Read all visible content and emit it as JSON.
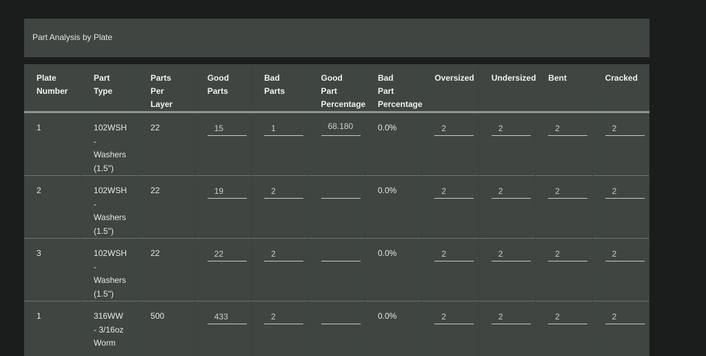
{
  "title": "Part Analysis by Plate",
  "columns": [
    "Plate Number",
    "Part Type",
    "Parts Per Layer",
    "Good Parts",
    "Bad Parts",
    "Good Part Percentage",
    "Bad Part Percentage",
    "Oversized",
    "Undersized",
    "Bent",
    "Cracked"
  ],
  "rows": [
    {
      "plate": "1",
      "part_type": "102WSH - Washers (1.5\")",
      "per_layer": "22",
      "good": "15",
      "bad": "1",
      "good_pct": "68.180",
      "bad_pct": "0.0%",
      "oversized": "2",
      "undersized": "2",
      "bent": "2",
      "cracked": "2"
    },
    {
      "plate": "2",
      "part_type": "102WSH - Washers (1.5\")",
      "per_layer": "22",
      "good": "19",
      "bad": "2",
      "good_pct": "",
      "bad_pct": "0.0%",
      "oversized": "2",
      "undersized": "2",
      "bent": "2",
      "cracked": "2"
    },
    {
      "plate": "3",
      "part_type": "102WSH - Washers (1.5\")",
      "per_layer": "22",
      "good": "22",
      "bad": "2",
      "good_pct": "",
      "bad_pct": "0.0%",
      "oversized": "2",
      "undersized": "2",
      "bent": "2",
      "cracked": "2"
    },
    {
      "plate": "1",
      "part_type": "316WW - 3/16oz Worm",
      "per_layer": "500",
      "good": "433",
      "bad": "2",
      "good_pct": "",
      "bad_pct": "0.0%",
      "oversized": "2",
      "undersized": "2",
      "bent": "2",
      "cracked": "2"
    }
  ]
}
